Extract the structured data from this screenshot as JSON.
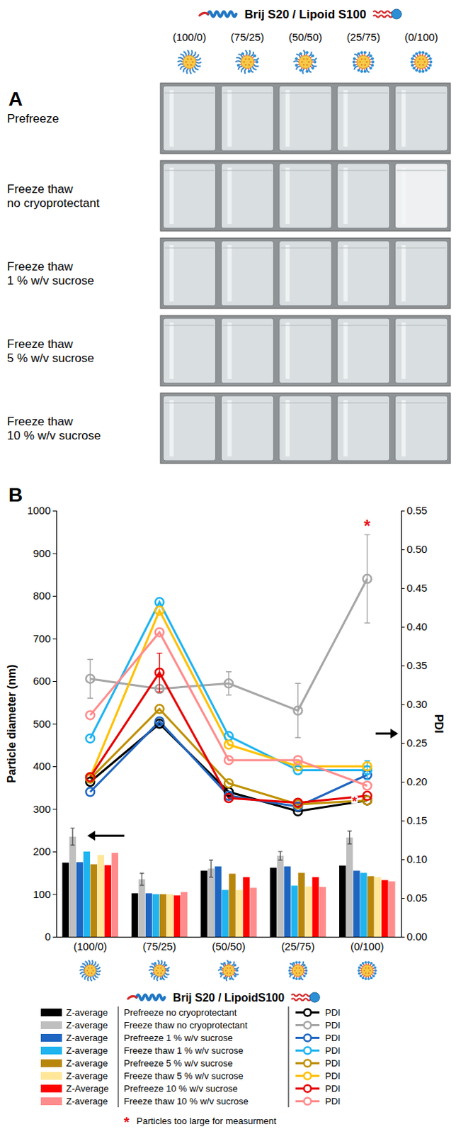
{
  "panel_a": {
    "label": "A",
    "header": "Brij S20 / Lipoid S100",
    "columns": [
      "(100/0)",
      "(75/25)",
      "(50/50)",
      "(25/75)",
      "(0/100)"
    ],
    "rows": [
      "Prefreeze",
      "Freeze thaw no cryoprotectant",
      "Freeze thaw 1 % w/v sucrose",
      "Freeze thaw 5 % w/v sucrose",
      "Freeze thaw 10 % w/v sucrose"
    ]
  },
  "chart_data": {
    "type": "bar",
    "label": "B",
    "categories": [
      "(100/0)",
      "(75/25)",
      "(50/50)",
      "(25/75)",
      "(0/100)"
    ],
    "x_label": "Brij S20 / LipoidS100",
    "y_label": "Particle diameter (nm)",
    "y2_label": "PDI",
    "ylim": [
      0,
      1000
    ],
    "yticks": [
      0,
      100,
      200,
      300,
      400,
      500,
      600,
      700,
      800,
      900,
      1000
    ],
    "y2lim": [
      0,
      0.55
    ],
    "y2ticks": [
      {
        "value": 0,
        "label": "0.00"
      },
      0.05,
      {
        "value": 0.1,
        "label": "0.10"
      },
      0.15,
      {
        "value": 0.2,
        "label": "0.20"
      },
      0.25,
      {
        "value": 0.3,
        "label": "0.30"
      },
      0.35,
      {
        "value": 0.4,
        "label": "0.40"
      },
      0.45,
      {
        "value": 0.5,
        "label": "0.50"
      },
      0.55
    ],
    "grid": false,
    "legend": "bottom",
    "series": [
      {
        "name": "Z-average",
        "condition": "Prefreeze no cryoprotectant",
        "type": "bar",
        "color": "#000000",
        "values": [
          174,
          102,
          155,
          162,
          167
        ]
      },
      {
        "name": "Z-average",
        "condition": "Freeze thaw no cryoprotectant",
        "type": "bar",
        "color": "#bfbfbf",
        "values": [
          235,
          135,
          160,
          190,
          233
        ],
        "errors": [
          20,
          14,
          20,
          10,
          15
        ]
      },
      {
        "name": "Z-average",
        "condition": "Prefreeze 1 % w/v sucrose",
        "type": "bar",
        "color": "#1f66c2",
        "values": [
          175,
          102,
          165,
          165,
          155
        ]
      },
      {
        "name": "Z-average",
        "condition": "Freeze thaw 1 % w/v sucrose",
        "type": "bar",
        "color": "#1fb4f0",
        "values": [
          200,
          100,
          110,
          120,
          150
        ]
      },
      {
        "name": "Z-average",
        "condition": "Prefreeze 5 % w/v sucrose",
        "type": "bar",
        "color": "#b8860b",
        "values": [
          170,
          100,
          148,
          150,
          142
        ]
      },
      {
        "name": "Z-average",
        "condition": "Freeze thaw 5 % w/v sucrose",
        "type": "bar",
        "color": "#ffe699",
        "values": [
          192,
          100,
          110,
          118,
          140
        ]
      },
      {
        "name": "Z-Average",
        "condition": "Prefreeze 10 % w/v sucrose",
        "type": "bar",
        "color": "#ff0000",
        "values": [
          168,
          97,
          140,
          140,
          133
        ]
      },
      {
        "name": "Z-average",
        "condition": "Freeze thaw 10 % w/v sucrose",
        "type": "bar",
        "color": "#ff8c8c",
        "values": [
          197,
          105,
          115,
          117,
          130
        ]
      },
      {
        "name": "PDI",
        "type": "line",
        "axis": "y2",
        "marker": "circle-open",
        "color": "#000000",
        "values": [
          0.2,
          0.275,
          0.187,
          0.162,
          0.176
        ]
      },
      {
        "name": "PDI",
        "type": "line",
        "axis": "y2",
        "marker": "circle-open",
        "color": "#a6a6a6",
        "values": [
          0.333,
          0.32,
          0.327,
          0.292,
          0.462
        ],
        "errors": [
          0.025,
          null,
          0.015,
          0.035,
          0.057
        ]
      },
      {
        "name": "PDI",
        "type": "line",
        "axis": "y2",
        "marker": "circle-open",
        "color": "#1f66c2",
        "values": [
          0.187,
          0.278,
          0.182,
          0.168,
          0.209
        ]
      },
      {
        "name": "PDI",
        "type": "line",
        "axis": "y2",
        "marker": "circle-open",
        "color": "#1fb4f0",
        "values": [
          0.256,
          0.432,
          0.259,
          0.215,
          0.215
        ],
        "errors": [
          null,
          null,
          null,
          null,
          0.012
        ]
      },
      {
        "name": "PDI",
        "type": "line",
        "axis": "y2",
        "marker": "circle-open",
        "color": "#bf9000",
        "values": [
          0.204,
          0.294,
          0.198,
          0.171,
          0.176
        ]
      },
      {
        "name": "PDI",
        "type": "line",
        "axis": "y2",
        "marker": "circle-open",
        "color": "#ffc000",
        "values": [
          0.206,
          0.421,
          0.248,
          0.22,
          0.22
        ]
      },
      {
        "name": "PDI",
        "type": "line",
        "axis": "y2",
        "marker": "circle-open",
        "color": "#e60000",
        "values": [
          0.206,
          0.341,
          0.179,
          0.173,
          0.182
        ],
        "errors": [
          null,
          0.025,
          null,
          null,
          null
        ]
      },
      {
        "name": "PDI",
        "type": "line",
        "axis": "y2",
        "marker": "circle-open",
        "color": "#ff8c8c",
        "values": [
          0.286,
          0.393,
          0.228,
          0.228,
          0.195
        ]
      }
    ],
    "annotations": [
      {
        "text": "*",
        "category": "(0/100)",
        "series": 9
      },
      {
        "text": "*",
        "category": "(0/100)",
        "series": 14
      }
    ],
    "footnote": {
      "symbol": "*",
      "text": "Particles too large for measurment"
    }
  }
}
